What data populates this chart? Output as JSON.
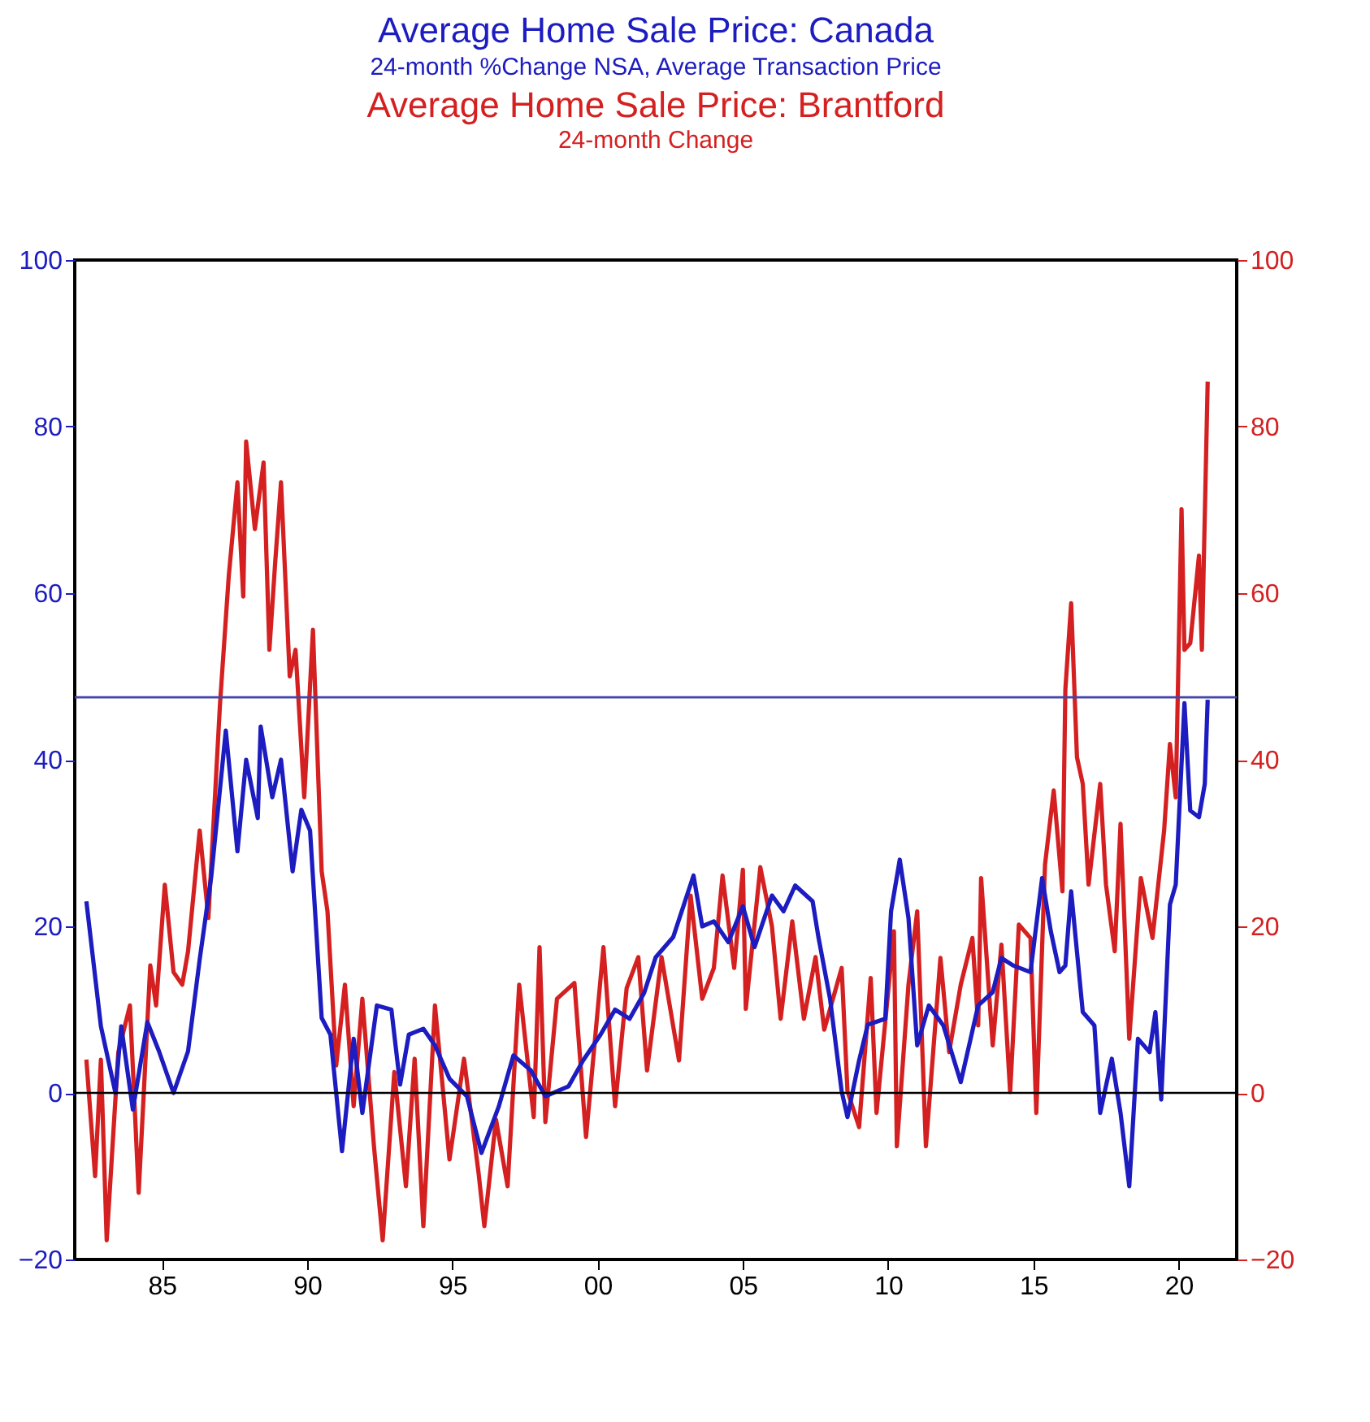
{
  "chart_data": {
    "type": "line",
    "title": "Average Home Sale Price: Canada",
    "subtitle": "24-month %Change     NSA, Average Transaction Price",
    "annotations": [
      "Average Home Sale Price: Brantford",
      "24-month Change"
    ],
    "xlim": [
      1982,
      2022
    ],
    "xticks": [
      {
        "value": 1985,
        "label": "85"
      },
      {
        "value": 1990,
        "label": "90"
      },
      {
        "value": 1995,
        "label": "95"
      },
      {
        "value": 2000,
        "label": "00"
      },
      {
        "value": 2005,
        "label": "05"
      },
      {
        "value": 2010,
        "label": "10"
      },
      {
        "value": 2015,
        "label": "15"
      },
      {
        "value": 2020,
        "label": "20"
      }
    ],
    "ylim": [
      -20,
      100
    ],
    "yticks": [
      -20,
      0,
      20,
      40,
      60,
      80,
      100
    ],
    "y2lim": [
      -20,
      100
    ],
    "y2ticks": [
      -20,
      0,
      20,
      40,
      60,
      80,
      100
    ],
    "grid": false,
    "marker": "none",
    "line_style": "solid",
    "ref_lines": [
      {
        "axis": "y",
        "value": 0,
        "color": "#000000"
      },
      {
        "axis": "y",
        "value": 47.5,
        "color": "#4444aa"
      }
    ],
    "series": [
      {
        "color": "#1c1cc0",
        "x": [
          1982.4,
          1982.9,
          1983.4,
          1983.6,
          1984.0,
          1984.5,
          1984.9,
          1985.4,
          1985.9,
          1986.3,
          1986.7,
          1987.2,
          1987.6,
          1987.9,
          1988.3,
          1988.4,
          1988.8,
          1989.1,
          1989.5,
          1989.8,
          1990.1,
          1990.5,
          1990.8,
          1991.2,
          1991.6,
          1991.9,
          1992.4,
          1992.9,
          1993.2,
          1993.5,
          1994.0,
          1994.4,
          1994.9,
          1995.5,
          1996.0,
          1996.6,
          1997.1,
          1997.7,
          1998.2,
          1999.0,
          1999.5,
          2000.1,
          2000.6,
          2001.1,
          2001.6,
          2002.0,
          2002.6,
          2003.3,
          2003.6,
          2004.0,
          2004.5,
          2005.0,
          2005.4,
          2006.0,
          2006.4,
          2006.8,
          2007.4,
          2007.6,
          2008.0,
          2008.4,
          2008.6,
          2009.0,
          2009.3,
          2009.9,
          2010.1,
          2010.4,
          2010.7,
          2011.0,
          2011.4,
          2011.9,
          2012.5,
          2013.1,
          2013.6,
          2013.9,
          2014.3,
          2014.9,
          2015.3,
          2015.6,
          2015.9,
          2016.1,
          2016.3,
          2016.7,
          2017.1,
          2017.3,
          2017.7,
          2018.0,
          2018.3,
          2018.6,
          2019.0,
          2019.2,
          2019.4,
          2019.7,
          2019.9,
          2020.2,
          2020.4,
          2020.7,
          2020.9,
          2021.0
        ],
        "values": [
          23,
          8,
          0,
          8,
          -2,
          8.5,
          5,
          0,
          5,
          16,
          26,
          43.5,
          29,
          40,
          33,
          44,
          35.5,
          40,
          26.6,
          34,
          31.5,
          9,
          7,
          -7,
          6.5,
          -2.4,
          10.5,
          10,
          1,
          7,
          7.7,
          5.7,
          1.7,
          -0.4,
          -7.2,
          -1.6,
          4.5,
          2.7,
          -0.4,
          0.8,
          3.9,
          7,
          10,
          8.9,
          12,
          16.3,
          18.7,
          26.1,
          20,
          20.6,
          18.1,
          22.4,
          17.5,
          23.7,
          21.8,
          24.9,
          23,
          18.7,
          11.3,
          0.2,
          -2.9,
          3.9,
          8.2,
          8.9,
          21.8,
          28,
          21,
          5.7,
          10.5,
          8.1,
          1.3,
          10.5,
          12.1,
          16.2,
          15.3,
          14.5,
          25.8,
          19.4,
          14.5,
          15.3,
          24.2,
          9.7,
          8.1,
          -2.4,
          4.1,
          -2.4,
          -11.2,
          6.5,
          4.9,
          9.7,
          -0.8,
          22.6,
          25,
          46.8,
          33.9,
          33.1,
          37.1,
          47.2
        ]
      },
      {
        "color": "#d42020",
        "axis": "y2",
        "x": [
          1982.4,
          1982.7,
          1982.9,
          1983.1,
          1983.5,
          1983.9,
          1984.2,
          1984.6,
          1984.8,
          1985.1,
          1985.4,
          1985.7,
          1985.9,
          1986.3,
          1986.6,
          1987.0,
          1987.3,
          1987.6,
          1987.8,
          1987.9,
          1988.2,
          1988.5,
          1988.7,
          1988.9,
          1989.1,
          1989.4,
          1989.6,
          1989.9,
          1990.2,
          1990.5,
          1990.7,
          1991.0,
          1991.3,
          1991.6,
          1991.9,
          1992.3,
          1992.6,
          1993.0,
          1993.4,
          1993.7,
          1994.0,
          1994.4,
          1994.9,
          1995.4,
          1995.9,
          1996.1,
          1996.5,
          1996.9,
          1997.3,
          1997.8,
          1998.0,
          1998.2,
          1998.6,
          1999.2,
          1999.6,
          2000.2,
          2000.6,
          2001.0,
          2001.4,
          2001.7,
          2002.2,
          2002.8,
          2003.2,
          2003.6,
          2004.0,
          2004.3,
          2004.7,
          2005.0,
          2005.1,
          2005.6,
          2006.0,
          2006.3,
          2006.7,
          2007.1,
          2007.5,
          2007.8,
          2008.4,
          2008.6,
          2009.0,
          2009.4,
          2009.6,
          2010.2,
          2010.3,
          2010.7,
          2011.0,
          2011.3,
          2011.8,
          2012.1,
          2012.5,
          2012.9,
          2013.1,
          2013.2,
          2013.6,
          2013.9,
          2014.2,
          2014.5,
          2014.9,
          2015.1,
          2015.4,
          2015.7,
          2016.0,
          2016.1,
          2016.3,
          2016.5,
          2016.7,
          2016.9,
          2017.3,
          2017.5,
          2017.8,
          2018.0,
          2018.3,
          2018.5,
          2018.7,
          2019.1,
          2019.5,
          2019.7,
          2019.9,
          2020.1,
          2020.2,
          2020.4,
          2020.7,
          2020.8,
          2021.0
        ],
        "values": [
          4,
          -10,
          4,
          -17.7,
          4.9,
          10.5,
          -12,
          15.3,
          10.5,
          25,
          14.5,
          13,
          17,
          31.5,
          21,
          46.7,
          62,
          73.3,
          59.6,
          78.2,
          67.7,
          75.7,
          53.2,
          63.7,
          73.3,
          50,
          53.2,
          35.5,
          55.6,
          26.6,
          21.8,
          3.3,
          13,
          -1.6,
          11.3,
          -6.4,
          -17.7,
          2.5,
          -11.2,
          4.1,
          -16,
          10.5,
          -8,
          4.1,
          -9.6,
          -16,
          -3.2,
          -11.2,
          13,
          -2.9,
          17.5,
          -3.5,
          11.3,
          13.2,
          -5.3,
          17.5,
          -1.6,
          12.6,
          16.3,
          2.7,
          16.3,
          3.9,
          23.7,
          11.3,
          15,
          26.1,
          15,
          26.8,
          10.1,
          27.1,
          20,
          8.9,
          20.6,
          8.9,
          16.3,
          7.6,
          15,
          0.2,
          -4.1,
          13.8,
          -2.4,
          19.4,
          -6.4,
          13,
          21.8,
          -6.4,
          16.2,
          4.9,
          13,
          18.6,
          8.1,
          25.8,
          5.7,
          17.8,
          0.1,
          20.2,
          18.6,
          -2.4,
          27.4,
          36.3,
          24.2,
          48.4,
          58.8,
          40.3,
          37.1,
          25,
          37.1,
          25,
          17,
          32.3,
          6.5,
          16.2,
          25.8,
          18.6,
          31.5,
          41.9,
          35.5,
          70.1,
          53.2,
          54,
          64.5,
          53.2,
          85.4
        ]
      }
    ]
  }
}
